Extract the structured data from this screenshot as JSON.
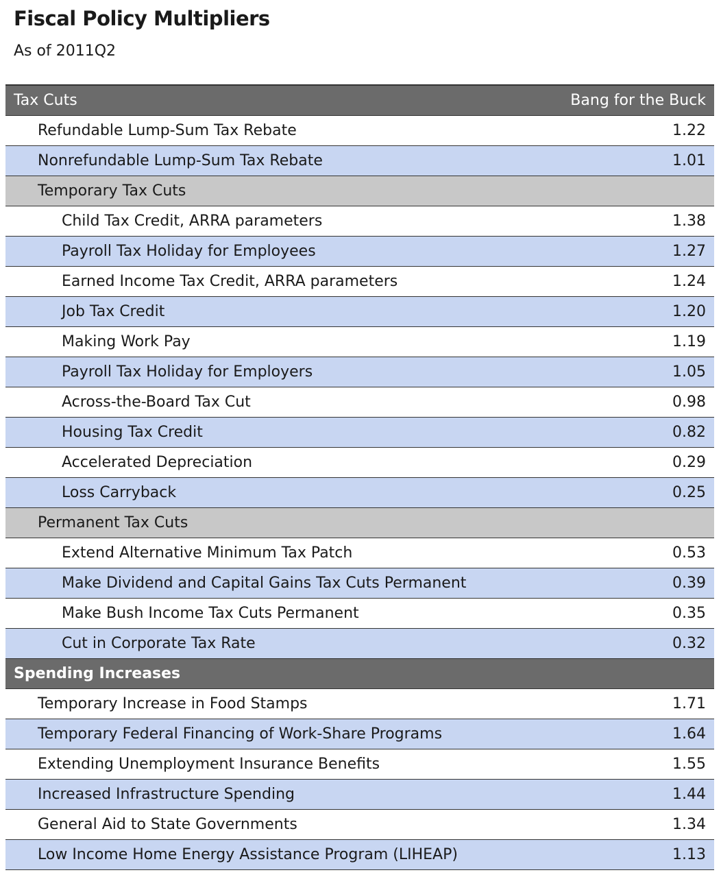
{
  "title": "Fiscal Policy Multipliers",
  "subtitle": "As of 2011Q2",
  "columns": {
    "left": "Tax Cuts",
    "right": "Bang for the Buck"
  },
  "rows": [
    {
      "label": "Refundable Lump-Sum Tax Rebate",
      "value": "1.22",
      "kind": "item",
      "level": 1,
      "shade": "white"
    },
    {
      "label": "Nonrefundable Lump-Sum Tax Rebate",
      "value": "1.01",
      "kind": "item",
      "level": 1,
      "shade": "blue"
    },
    {
      "label": "Temporary Tax Cuts",
      "value": "",
      "kind": "group",
      "level": 1,
      "shade": "gray"
    },
    {
      "label": "Child Tax Credit, ARRA parameters",
      "value": "1.38",
      "kind": "item",
      "level": 2,
      "shade": "white"
    },
    {
      "label": "Payroll Tax Holiday for Employees",
      "value": "1.27",
      "kind": "item",
      "level": 2,
      "shade": "blue"
    },
    {
      "label": "Earned Income Tax Credit, ARRA parameters",
      "value": "1.24",
      "kind": "item",
      "level": 2,
      "shade": "white"
    },
    {
      "label": "Job Tax Credit",
      "value": "1.20",
      "kind": "item",
      "level": 2,
      "shade": "blue"
    },
    {
      "label": "Making Work Pay",
      "value": "1.19",
      "kind": "item",
      "level": 2,
      "shade": "white"
    },
    {
      "label": "Payroll Tax Holiday for Employers",
      "value": "1.05",
      "kind": "item",
      "level": 2,
      "shade": "blue"
    },
    {
      "label": "Across-the-Board Tax Cut",
      "value": "0.98",
      "kind": "item",
      "level": 2,
      "shade": "white"
    },
    {
      "label": "Housing Tax Credit",
      "value": "0.82",
      "kind": "item",
      "level": 2,
      "shade": "blue"
    },
    {
      "label": "Accelerated Depreciation",
      "value": "0.29",
      "kind": "item",
      "level": 2,
      "shade": "white"
    },
    {
      "label": "Loss Carryback",
      "value": "0.25",
      "kind": "item",
      "level": 2,
      "shade": "blue"
    },
    {
      "label": "Permanent Tax Cuts",
      "value": "",
      "kind": "group",
      "level": 1,
      "shade": "gray"
    },
    {
      "label": "Extend Alternative Minimum Tax Patch",
      "value": "0.53",
      "kind": "item",
      "level": 2,
      "shade": "white"
    },
    {
      "label": "Make Dividend and Capital Gains Tax Cuts Permanent",
      "value": "0.39",
      "kind": "item",
      "level": 2,
      "shade": "blue"
    },
    {
      "label": "Make Bush Income Tax Cuts Permanent",
      "value": "0.35",
      "kind": "item",
      "level": 2,
      "shade": "white"
    },
    {
      "label": "Cut in Corporate Tax Rate",
      "value": "0.32",
      "kind": "item",
      "level": 2,
      "shade": "blue"
    },
    {
      "label": "Spending Increases",
      "value": "",
      "kind": "section",
      "level": 0,
      "shade": "dark"
    },
    {
      "label": "Temporary Increase in Food Stamps",
      "value": "1.71",
      "kind": "item",
      "level": 1,
      "shade": "white"
    },
    {
      "label": "Temporary Federal Financing of Work-Share Programs",
      "value": "1.64",
      "kind": "item",
      "level": 1,
      "shade": "blue"
    },
    {
      "label": "Extending Unemployment Insurance Benefits",
      "value": "1.55",
      "kind": "item",
      "level": 1,
      "shade": "white"
    },
    {
      "label": "Increased Infrastructure Spending",
      "value": "1.44",
      "kind": "item",
      "level": 1,
      "shade": "blue"
    },
    {
      "label": "General Aid to State Governments",
      "value": "1.34",
      "kind": "item",
      "level": 1,
      "shade": "white"
    },
    {
      "label": "Low Income Home Energy Assistance Program (LIHEAP)",
      "value": "1.13",
      "kind": "item",
      "level": 1,
      "shade": "blue"
    }
  ]
}
